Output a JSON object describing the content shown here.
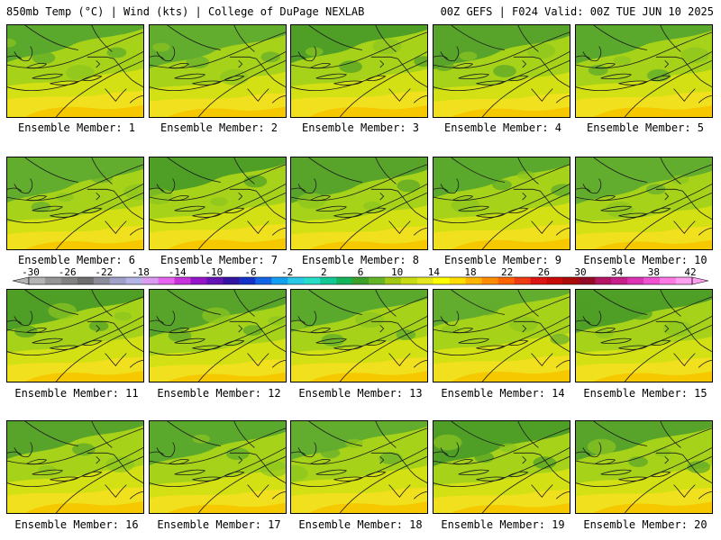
{
  "header": {
    "left": "850mb Temp (°C) | Wind (kts) | College of DuPage NEXLAB",
    "right": "00Z GEFS | F024 Valid: 00Z TUE JUN 10 2025"
  },
  "members": [
    "Ensemble Member: 1",
    "Ensemble Member: 2",
    "Ensemble Member: 3",
    "Ensemble Member: 4",
    "Ensemble Member: 5",
    "Ensemble Member: 6",
    "Ensemble Member: 7",
    "Ensemble Member: 8",
    "Ensemble Member: 9",
    "Ensemble Member: 10",
    "Ensemble Member: 11",
    "Ensemble Member: 12",
    "Ensemble Member: 13",
    "Ensemble Member: 14",
    "Ensemble Member: 15",
    "Ensemble Member: 16",
    "Ensemble Member: 17",
    "Ensemble Member: 18",
    "Ensemble Member: 19",
    "Ensemble Member: 20"
  ],
  "colorbar": {
    "labels": [
      "-30",
      "-26",
      "-22",
      "-18",
      "-14",
      "-10",
      "-6",
      "-2",
      "2",
      "6",
      "10",
      "14",
      "18",
      "22",
      "26",
      "30",
      "34",
      "38",
      "42"
    ],
    "colors": [
      "#b4b4b4",
      "#969696",
      "#828282",
      "#6e6e6e",
      "#8c8c9a",
      "#a0a0c8",
      "#b4b4e6",
      "#dc9bf0",
      "#e664f0",
      "#c832dc",
      "#9614c8",
      "#6414b4",
      "#3214a0",
      "#1432c8",
      "#1464e6",
      "#14a0f0",
      "#28c8e6",
      "#28dcc8",
      "#14c896",
      "#14b45a",
      "#3ca028",
      "#64b428",
      "#a0c814",
      "#c8dc14",
      "#e6e61e",
      "#ffff00",
      "#ffdc00",
      "#ffb400",
      "#ff8c00",
      "#ff6400",
      "#f03c14",
      "#dc1414",
      "#c80a0a",
      "#aa0a0a",
      "#960a28",
      "#b41464",
      "#c81e8c",
      "#dc32b4",
      "#f050d2",
      "#ff7ae6",
      "#ffa0f0"
    ]
  }
}
